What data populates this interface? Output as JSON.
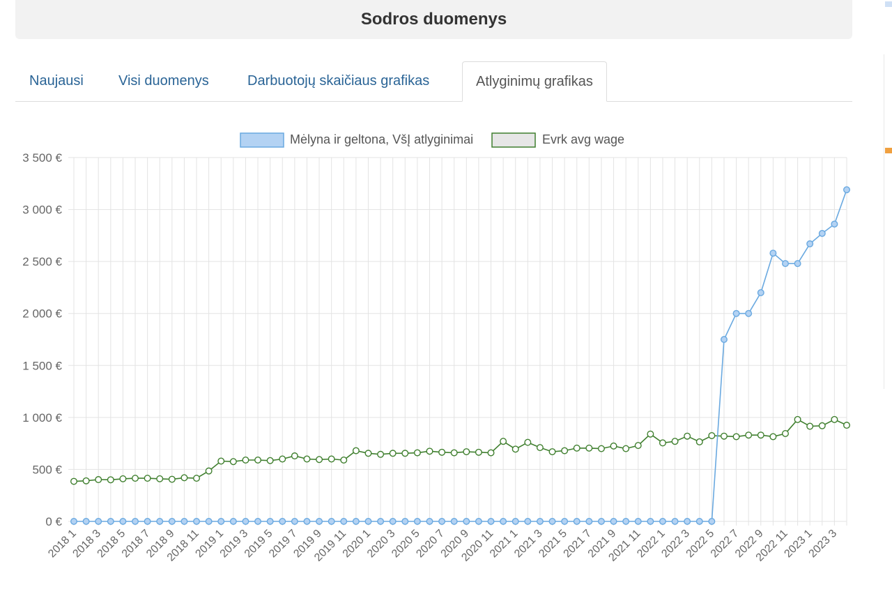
{
  "page": {
    "title": "Sodros duomenys"
  },
  "tabs": [
    {
      "label": "Naujausi",
      "active": false
    },
    {
      "label": "Visi duomenys",
      "active": false
    },
    {
      "label": "Darbuotojų skaičiaus grafikas",
      "active": false
    },
    {
      "label": "Atlyginimų grafikas",
      "active": true
    }
  ],
  "colors": {
    "series1_line": "#6aa9e0",
    "series1_fill": "#b3d2f3",
    "series2_line": "#3f7f2e",
    "series2_fill": "#e6e6e6",
    "grid": "#e3e3e3"
  },
  "chart_data": {
    "type": "line",
    "title": "",
    "xlabel": "",
    "ylabel": "",
    "ylim": [
      0,
      3500
    ],
    "yticks": [
      0,
      500,
      1000,
      1500,
      2000,
      2500,
      3000,
      3500
    ],
    "ytick_labels": [
      "0 €",
      "500 €",
      "1 000 €",
      "1 500 €",
      "2 000 €",
      "2 500 €",
      "3 000 €",
      "3 500 €"
    ],
    "grid": true,
    "legend_position": "top",
    "x": [
      "2018 1",
      "2018 2",
      "2018 3",
      "2018 4",
      "2018 5",
      "2018 6",
      "2018 7",
      "2018 8",
      "2018 9",
      "2018 10",
      "2018 11",
      "2018 12",
      "2019 1",
      "2019 2",
      "2019 3",
      "2019 4",
      "2019 5",
      "2019 6",
      "2019 7",
      "2019 8",
      "2019 9",
      "2019 10",
      "2019 11",
      "2019 12",
      "2020 1",
      "2020 2",
      "2020 3",
      "2020 4",
      "2020 5",
      "2020 6",
      "2020 7",
      "2020 8",
      "2020 9",
      "2020 10",
      "2020 11",
      "2020 12",
      "2021 1",
      "2021 2",
      "2021 3",
      "2021 4",
      "2021 5",
      "2021 6",
      "2021 7",
      "2021 8",
      "2021 9",
      "2021 10",
      "2021 11",
      "2021 12",
      "2022 1",
      "2022 2",
      "2022 3",
      "2022 4",
      "2022 5",
      "2022 6",
      "2022 7",
      "2022 8",
      "2022 9",
      "2022 10",
      "2022 11",
      "2022 12",
      "2023 1",
      "2023 2",
      "2023 3",
      "2023 4"
    ],
    "x_tick_labels_shown": [
      "2018 1",
      "2018 3",
      "2018 5",
      "2018 7",
      "2018 9",
      "2018 11",
      "2019 1",
      "2019 3",
      "2019 5",
      "2019 7",
      "2019 9",
      "2019 11",
      "2020 1",
      "2020 3",
      "2020 5",
      "2020 7",
      "2020 9",
      "2020 11",
      "2021 1",
      "2021 3",
      "2021 5",
      "2021 7",
      "2021 9",
      "2021 11",
      "2022 1",
      "2022 3",
      "2022 5",
      "2022 7",
      "2022 9",
      "2022 11",
      "2023 1",
      "2023 3"
    ],
    "series": [
      {
        "name": "Mėlyna ir geltona, VšĮ atlyginimai",
        "values": [
          0,
          0,
          0,
          0,
          0,
          0,
          0,
          0,
          0,
          0,
          0,
          0,
          0,
          0,
          0,
          0,
          0,
          0,
          0,
          0,
          0,
          0,
          0,
          0,
          0,
          0,
          0,
          0,
          0,
          0,
          0,
          0,
          0,
          0,
          0,
          0,
          0,
          0,
          0,
          0,
          0,
          0,
          0,
          0,
          0,
          0,
          0,
          0,
          0,
          0,
          0,
          0,
          0,
          1750,
          2000,
          2000,
          2200,
          2580,
          2480,
          2480,
          2670,
          2770,
          2860,
          3190
        ]
      },
      {
        "name": "Evrk avg wage",
        "values": [
          385,
          390,
          402,
          400,
          410,
          415,
          415,
          410,
          405,
          420,
          415,
          485,
          580,
          575,
          590,
          590,
          585,
          600,
          630,
          600,
          595,
          600,
          590,
          680,
          655,
          645,
          655,
          655,
          660,
          675,
          665,
          660,
          670,
          665,
          660,
          770,
          695,
          760,
          710,
          670,
          680,
          705,
          705,
          700,
          725,
          700,
          730,
          840,
          755,
          770,
          820,
          765,
          825,
          820,
          815,
          830,
          830,
          815,
          845,
          980,
          915,
          920,
          980,
          925
        ]
      }
    ]
  }
}
